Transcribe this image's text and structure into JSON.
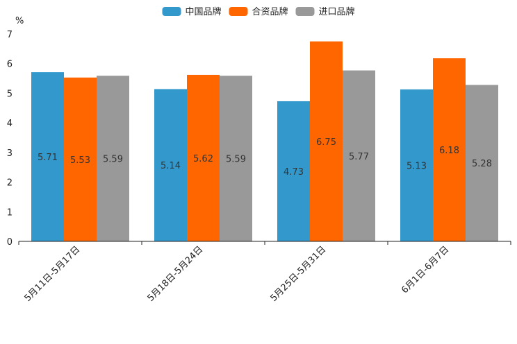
{
  "chart_data": {
    "type": "bar",
    "ylabel": "%",
    "ylim": [
      0,
      7
    ],
    "yticks": [
      "0",
      "1",
      "2",
      "3",
      "4",
      "5",
      "6",
      "7"
    ],
    "categories": [
      "5月11日-5月17日",
      "5月18日-5月24日",
      "5月25日-5月31日",
      "6月1日-6月7日"
    ],
    "series": [
      {
        "name": "中国品牌",
        "color": "#3399cc",
        "values": [
          5.71,
          5.14,
          4.73,
          5.13
        ],
        "labels": [
          "5.71",
          "5.14",
          "4.73",
          "5.13"
        ]
      },
      {
        "name": "合资品牌",
        "color": "#ff6600",
        "values": [
          5.53,
          5.62,
          6.75,
          6.18
        ],
        "labels": [
          "5.53",
          "5.62",
          "6.75",
          "6.18"
        ]
      },
      {
        "name": "进口品牌",
        "color": "#999999",
        "values": [
          5.59,
          5.59,
          5.77,
          5.28
        ],
        "labels": [
          "5.59",
          "5.59",
          "5.77",
          "5.28"
        ]
      }
    ],
    "legend_position": "top-center",
    "grid": false
  }
}
